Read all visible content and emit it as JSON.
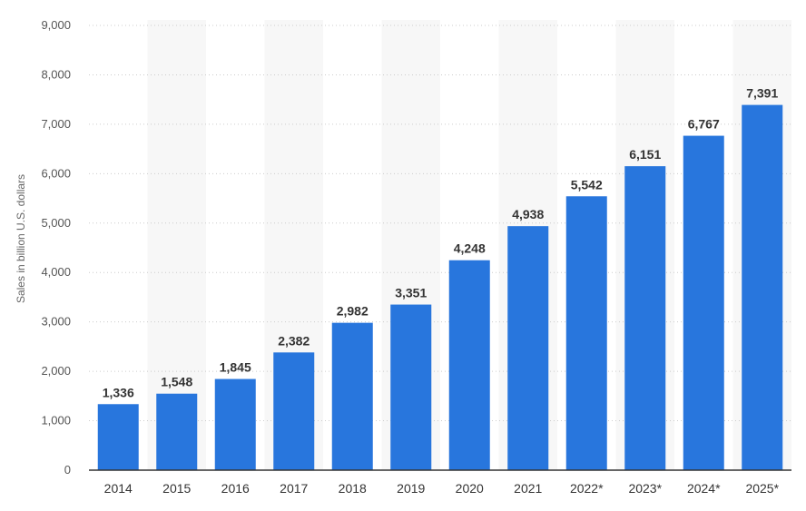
{
  "chart_data": {
    "type": "bar",
    "title": "",
    "xlabel": "",
    "ylabel": "Sales in billion U.S. dollars",
    "categories": [
      "2014",
      "2015",
      "2016",
      "2017",
      "2018",
      "2019",
      "2020",
      "2021",
      "2022*",
      "2023*",
      "2024*",
      "2025*"
    ],
    "values": [
      1336,
      1548,
      1845,
      2382,
      2982,
      3351,
      4248,
      4938,
      5542,
      6151,
      6767,
      7391
    ],
    "data_labels": [
      "1,336",
      "1,548",
      "1,845",
      "2,382",
      "2,982",
      "3,351",
      "4,248",
      "4,938",
      "5,542",
      "6,151",
      "6,767",
      "7,391"
    ],
    "yticks": [
      "0",
      "1,000",
      "2,000",
      "3,000",
      "4,000",
      "5,000",
      "6,000",
      "7,000",
      "8,000",
      "9,000"
    ],
    "ylim": [
      0,
      9000
    ],
    "ytick_step": 1000,
    "grid": true,
    "grid_style": "dotted",
    "legend": "none",
    "colors": {
      "bar": "#2876dd",
      "band": "#f7f7f7",
      "grid": "#cccccc",
      "axis": "#333333"
    }
  }
}
